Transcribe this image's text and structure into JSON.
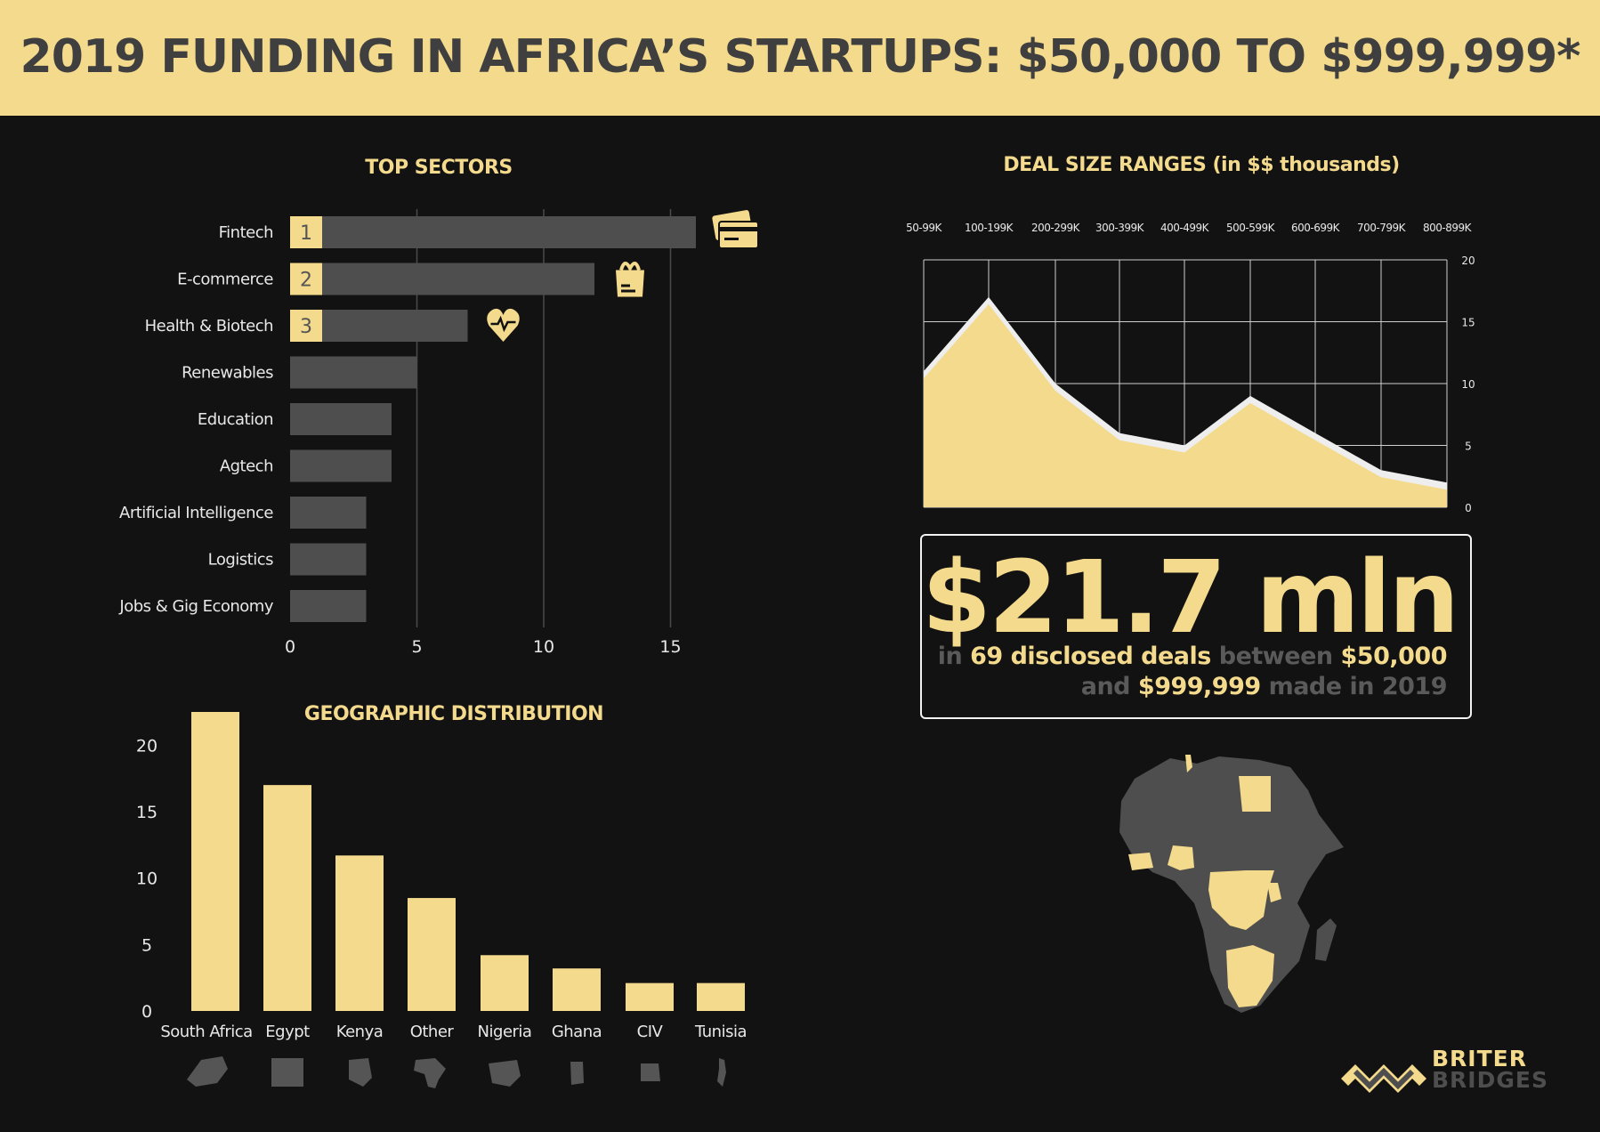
{
  "title": "2019 FUNDING IN AFRICA’S STARTUPS: $50,000 TO $999,999*",
  "colors": {
    "accent": "#f4da8c",
    "bar_gray": "#4e4e4e",
    "background": "#121212",
    "text": "#e8e8e8"
  },
  "highlight": {
    "amount": "$21.7 mln",
    "line1": [
      "in",
      "69 disclosed deals",
      "between",
      "$50,000"
    ],
    "line2": [
      "and",
      "$999,999",
      "made in 2019"
    ]
  },
  "logo": {
    "line1": "BRITER",
    "line2": "BRIDGES"
  },
  "chart_data": [
    {
      "type": "bar",
      "orientation": "horizontal",
      "title": "TOP SECTORS",
      "categories": [
        "Fintech",
        "E-commerce",
        "Health & Biotech",
        "Renewables",
        "Education",
        "Agtech",
        "Artificial Intelligence",
        "Logistics",
        "Jobs & Gig Economy"
      ],
      "values": [
        16,
        12,
        7,
        5,
        4,
        4,
        3,
        3,
        3
      ],
      "rank_labels": [
        "1",
        "2",
        "3"
      ],
      "rank_icons": [
        "credit-card-icon",
        "shopping-bag-icon",
        "heartbeat-icon"
      ],
      "xticks": [
        "0",
        "5",
        "10",
        "15"
      ],
      "xlim": [
        0,
        17
      ],
      "grid": true
    },
    {
      "type": "area",
      "title": "DEAL SIZE RANGES (in $$ thousands)",
      "categories": [
        "50-99K",
        "100-199K",
        "200-299K",
        "300-399K",
        "400-499K",
        "500-599K",
        "600-699K",
        "700-799K",
        "800-899K"
      ],
      "values": [
        11,
        17,
        10,
        6,
        5,
        9,
        6,
        3,
        2
      ],
      "yticks": [
        "0",
        "5",
        "10",
        "15",
        "20"
      ],
      "ylim": [
        0,
        20
      ],
      "axis_position": "top-right",
      "grid": true
    },
    {
      "type": "bar",
      "title": "GEOGRAPHIC DISTRIBUTION",
      "categories": [
        "South Africa",
        "Egypt",
        "Kenya",
        "Other",
        "Nigeria",
        "Ghana",
        "CIV",
        "Tunisia"
      ],
      "values": [
        22.5,
        17,
        11.7,
        8.5,
        4.2,
        3.2,
        2.1,
        2.1
      ],
      "yticks": [
        "0",
        "5",
        "10",
        "15",
        "20"
      ],
      "ylim": [
        0,
        22.5
      ],
      "grid": false
    }
  ]
}
